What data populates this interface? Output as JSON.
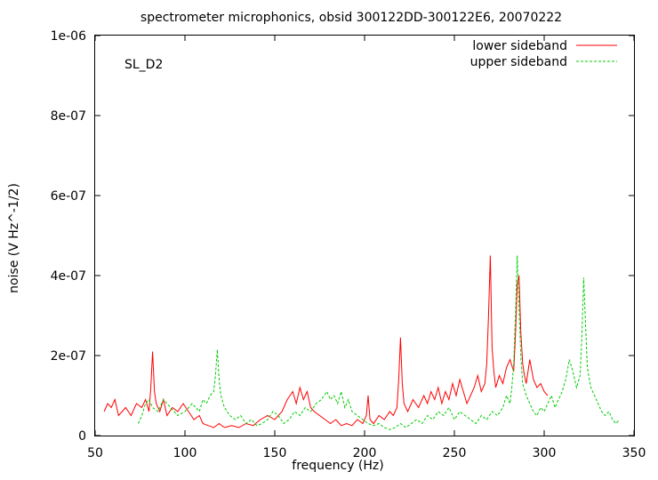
{
  "chart_data": {
    "type": "line",
    "title": "spectrometer microphonics, obsid 300122DD-300122E6, 20070222",
    "xlabel": "frequency (Hz)",
    "ylabel": "noise (V Hz^-1/2)",
    "annotation": "SL_D2",
    "xlim": [
      50,
      350
    ],
    "ylim": [
      0,
      1e-06
    ],
    "x_ticks": [
      50,
      100,
      150,
      200,
      250,
      300,
      350
    ],
    "x_tick_labels": [
      "50",
      "100",
      "150",
      "200",
      "250",
      "300",
      "350"
    ],
    "y_ticks": [
      0,
      2e-07,
      4e-07,
      6e-07,
      8e-07,
      1e-06
    ],
    "y_tick_labels": [
      "0",
      "2e-07",
      "4e-07",
      "6e-07",
      "8e-07",
      "1e-06"
    ],
    "grid": false,
    "legend_position": "top-right",
    "series": [
      {
        "name": "lower sideband",
        "color": "#ff0000",
        "style": "solid",
        "x": [
          55,
          57,
          59,
          61,
          63,
          65,
          67,
          70,
          73,
          76,
          78,
          80,
          81,
          82,
          83,
          84,
          86,
          88,
          90,
          93,
          96,
          99,
          102,
          105,
          108,
          110,
          113,
          116,
          119,
          122,
          126,
          130,
          134,
          138,
          142,
          146,
          150,
          154,
          157,
          160,
          162,
          164,
          166,
          168,
          170,
          172,
          175,
          178,
          181,
          184,
          187,
          190,
          193,
          196,
          199,
          201,
          202,
          203,
          205,
          208,
          211,
          214,
          216,
          218,
          219,
          220,
          221,
          222,
          224,
          227,
          230,
          233,
          235,
          237,
          239,
          241,
          243,
          245,
          247,
          249,
          251,
          253,
          255,
          257,
          259,
          261,
          263,
          265,
          267,
          268,
          269,
          270,
          271,
          272,
          273,
          275,
          277,
          279,
          281,
          283,
          284,
          285,
          286,
          287,
          288,
          289,
          290,
          291,
          292,
          294,
          296,
          298,
          300,
          302
        ],
        "y": [
          6e-08,
          8e-08,
          7e-08,
          9e-08,
          5e-08,
          6e-08,
          7e-08,
          5e-08,
          8e-08,
          7e-08,
          9e-08,
          6e-08,
          1.2e-07,
          2.1e-07,
          1.1e-07,
          8e-08,
          6e-08,
          9e-08,
          5e-08,
          7e-08,
          6e-08,
          8e-08,
          6e-08,
          4e-08,
          5e-08,
          3e-08,
          2.5e-08,
          2e-08,
          3e-08,
          2e-08,
          2.5e-08,
          2e-08,
          3e-08,
          2.5e-08,
          4e-08,
          5e-08,
          4e-08,
          6e-08,
          9e-08,
          1.1e-07,
          8e-08,
          1.2e-07,
          9e-08,
          1.1e-07,
          7e-08,
          6e-08,
          5e-08,
          4e-08,
          3e-08,
          4e-08,
          2.5e-08,
          3e-08,
          2.5e-08,
          4e-08,
          3e-08,
          5e-08,
          1e-07,
          4e-08,
          3e-08,
          5e-08,
          4e-08,
          6e-08,
          5e-08,
          7e-08,
          1.4e-07,
          2.45e-07,
          1.3e-07,
          8e-08,
          6e-08,
          9e-08,
          7e-08,
          1e-07,
          8e-08,
          1.1e-07,
          9e-08,
          1.2e-07,
          8e-08,
          1.1e-07,
          9e-08,
          1.3e-07,
          1e-07,
          1.4e-07,
          1.1e-07,
          8e-08,
          1e-07,
          1.2e-07,
          1.5e-07,
          1.1e-07,
          1.3e-07,
          1.8e-07,
          3e-07,
          4.5e-07,
          2.2e-07,
          1.6e-07,
          1.2e-07,
          1.5e-07,
          1.3e-07,
          1.7e-07,
          1.9e-07,
          1.6e-07,
          2.5e-07,
          3.8e-07,
          4e-07,
          2.6e-07,
          1.8e-07,
          1.5e-07,
          1.3e-07,
          1.6e-07,
          1.9e-07,
          1.4e-07,
          1.2e-07,
          1.3e-07,
          1.1e-07,
          1e-07
        ]
      },
      {
        "name": "upper sideband",
        "color": "#00cc00",
        "style": "dashed",
        "x": [
          74,
          76,
          78,
          80,
          82,
          85,
          88,
          92,
          96,
          100,
          104,
          108,
          110,
          112,
          114,
          116,
          117,
          118,
          119,
          120,
          122,
          125,
          128,
          131,
          134,
          137,
          140,
          143,
          146,
          149,
          152,
          155,
          158,
          161,
          164,
          167,
          170,
          173,
          176,
          179,
          181,
          183,
          185,
          187,
          189,
          191,
          193,
          196,
          199,
          202,
          205,
          208,
          211,
          214,
          217,
          220,
          223,
          226,
          229,
          232,
          235,
          238,
          241,
          244,
          247,
          250,
          253,
          256,
          259,
          262,
          265,
          268,
          271,
          274,
          277,
          279,
          281,
          282,
          283,
          284,
          285,
          286,
          287,
          288,
          290,
          292,
          294,
          296,
          298,
          300,
          302,
          304,
          306,
          308,
          310,
          312,
          314,
          316,
          318,
          320,
          321,
          322,
          323,
          324,
          326,
          328,
          330,
          332,
          334,
          336,
          338,
          340,
          342
        ],
        "y": [
          3e-08,
          5e-08,
          8e-08,
          9e-08,
          7e-08,
          6e-08,
          9e-08,
          7e-08,
          5e-08,
          6e-08,
          8e-08,
          6e-08,
          9e-08,
          8e-08,
          1e-07,
          1.1e-07,
          1.5e-07,
          2.15e-07,
          1.4e-07,
          1e-07,
          7e-08,
          5e-08,
          4e-08,
          5e-08,
          3e-08,
          4e-08,
          2.5e-08,
          3e-08,
          4e-08,
          6e-08,
          5e-08,
          3e-08,
          4e-08,
          6e-08,
          5e-08,
          7e-08,
          6e-08,
          8e-08,
          9e-08,
          1.1e-07,
          9e-08,
          1e-07,
          8e-08,
          1.1e-07,
          7e-08,
          9e-08,
          6e-08,
          5e-08,
          4e-08,
          3e-08,
          2.5e-08,
          3e-08,
          2e-08,
          1.5e-08,
          2e-08,
          3e-08,
          2e-08,
          3e-08,
          4e-08,
          3e-08,
          5e-08,
          4e-08,
          6e-08,
          5e-08,
          7e-08,
          4e-08,
          6e-08,
          5e-08,
          4e-08,
          3e-08,
          5e-08,
          4e-08,
          6e-08,
          5e-08,
          7e-08,
          1e-07,
          8e-08,
          1.2e-07,
          1.8e-07,
          3e-07,
          4.5e-07,
          3.2e-07,
          2e-07,
          1.3e-07,
          1e-07,
          8e-08,
          6e-08,
          5e-08,
          7e-08,
          6e-08,
          8e-08,
          1e-07,
          7e-08,
          9e-08,
          1.1e-07,
          1.4e-07,
          1.9e-07,
          1.6e-07,
          1.2e-07,
          1.5e-07,
          2.5e-07,
          3.95e-07,
          2.8e-07,
          1.7e-07,
          1.2e-07,
          1e-07,
          8e-08,
          6e-08,
          5e-08,
          6e-08,
          4e-08,
          3e-08,
          4e-08
        ]
      }
    ]
  }
}
